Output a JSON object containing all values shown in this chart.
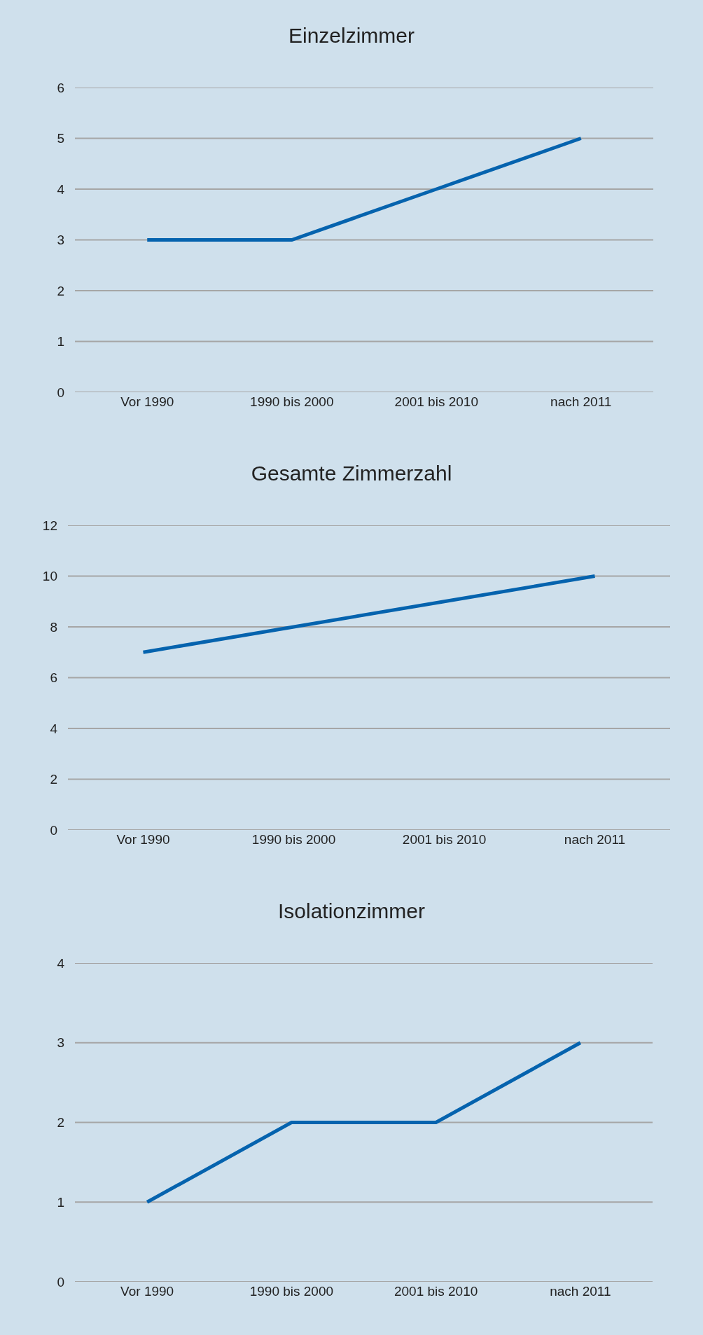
{
  "chart_data": [
    {
      "type": "line",
      "title": "Einzelzimmer",
      "categories": [
        "Vor 1990",
        "1990 bis 2000",
        "2001 bis 2010",
        "nach 2011"
      ],
      "series": [
        {
          "color": "#0563ae",
          "values": [
            3,
            3,
            4,
            5
          ]
        }
      ],
      "ylim": [
        0,
        6
      ],
      "yticks": [
        0,
        1,
        2,
        3,
        4,
        5,
        6
      ],
      "grid": "y",
      "marker": "none",
      "line_style": "solid"
    },
    {
      "type": "line",
      "title": "Gesamte Zimmerzahl",
      "categories": [
        "Vor 1990",
        "1990 bis 2000",
        "2001 bis 2010",
        "nach 2011"
      ],
      "series": [
        {
          "color": "#0563ae",
          "values": [
            7,
            8,
            9,
            10
          ]
        }
      ],
      "ylim": [
        0,
        12
      ],
      "yticks": [
        0,
        2,
        4,
        6,
        8,
        10,
        12
      ],
      "grid": "y",
      "marker": "none",
      "line_style": "solid"
    },
    {
      "type": "line",
      "title": "Isolationzimmer",
      "categories": [
        "Vor 1990",
        "1990 bis 2000",
        "2001 bis 2010",
        "nach 2011"
      ],
      "series": [
        {
          "color": "#0563ae",
          "values": [
            1,
            2,
            2,
            3
          ]
        }
      ],
      "ylim": [
        0,
        4
      ],
      "yticks": [
        0,
        1,
        2,
        3,
        4
      ],
      "grid": "y",
      "marker": "none",
      "line_style": "solid"
    }
  ]
}
